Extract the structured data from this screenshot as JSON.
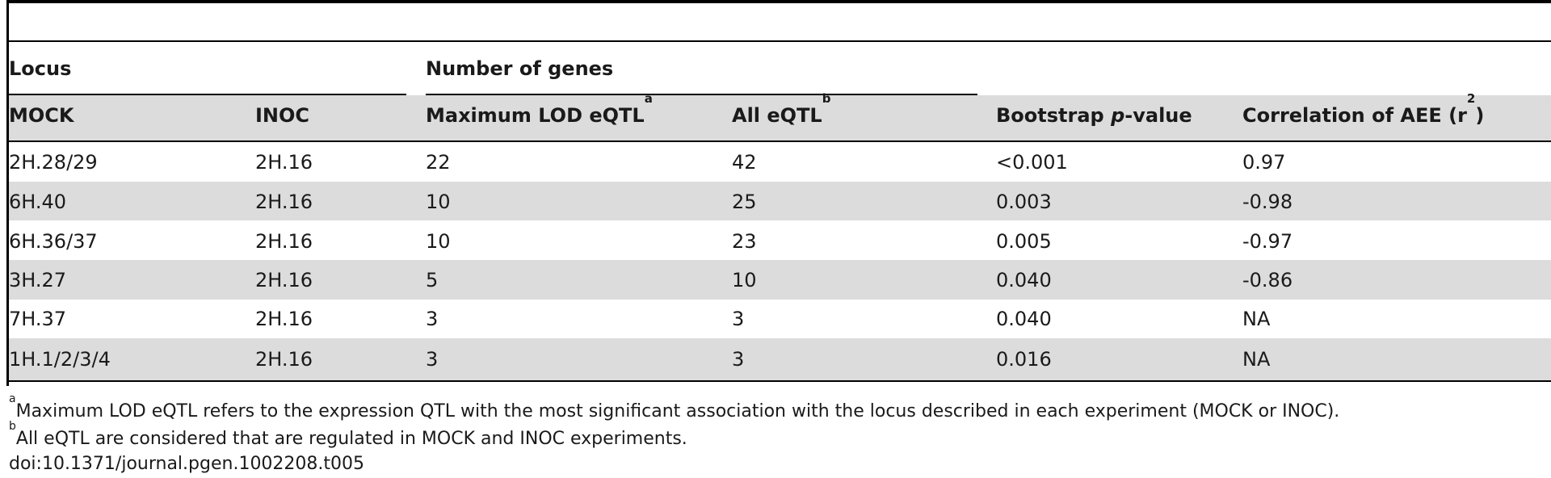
{
  "table": {
    "group_headers": {
      "locus": "Locus",
      "number_of_genes": "Number of genes"
    },
    "columns": {
      "mock": "MOCK",
      "inoc": "INOC",
      "max_lod": "Maximum LOD eQTL",
      "max_lod_note": "a",
      "all_eqtl": "All eQTL",
      "all_eqtl_note": "b",
      "bootstrap_prefix": "Bootstrap ",
      "bootstrap_p": "p",
      "bootstrap_suffix": "-value",
      "correlation_prefix": "Correlation of AEE (r",
      "correlation_exp": "2",
      "correlation_suffix": ")"
    },
    "rows": [
      {
        "mock": "2H.28/29",
        "inoc": "2H.16",
        "max_lod": "22",
        "all_eqtl": "42",
        "bootstrap": "<0.001",
        "correlation": "0.97"
      },
      {
        "mock": "6H.40",
        "inoc": "2H.16",
        "max_lod": "10",
        "all_eqtl": "25",
        "bootstrap": "0.003",
        "correlation": "-0.98"
      },
      {
        "mock": "6H.36/37",
        "inoc": "2H.16",
        "max_lod": "10",
        "all_eqtl": "23",
        "bootstrap": "0.005",
        "correlation": "-0.97"
      },
      {
        "mock": "3H.27",
        "inoc": "2H.16",
        "max_lod": "5",
        "all_eqtl": "10",
        "bootstrap": "0.040",
        "correlation": "-0.86"
      },
      {
        "mock": "7H.37",
        "inoc": "2H.16",
        "max_lod": "3",
        "all_eqtl": "3",
        "bootstrap": "0.040",
        "correlation": "NA"
      },
      {
        "mock": "1H.1/2/3/4",
        "inoc": "2H.16",
        "max_lod": "3",
        "all_eqtl": "3",
        "bootstrap": "0.016",
        "correlation": "NA"
      }
    ]
  },
  "footnotes": {
    "a_mark": "a",
    "a_text": "Maximum LOD eQTL refers to the expression QTL with the most significant association with the locus described in each experiment (MOCK or INOC).",
    "b_mark": "b",
    "b_text": "All eQTL are considered that are regulated in MOCK and INOC experiments.",
    "doi": "doi:10.1371/journal.pgen.1002208.t005"
  }
}
